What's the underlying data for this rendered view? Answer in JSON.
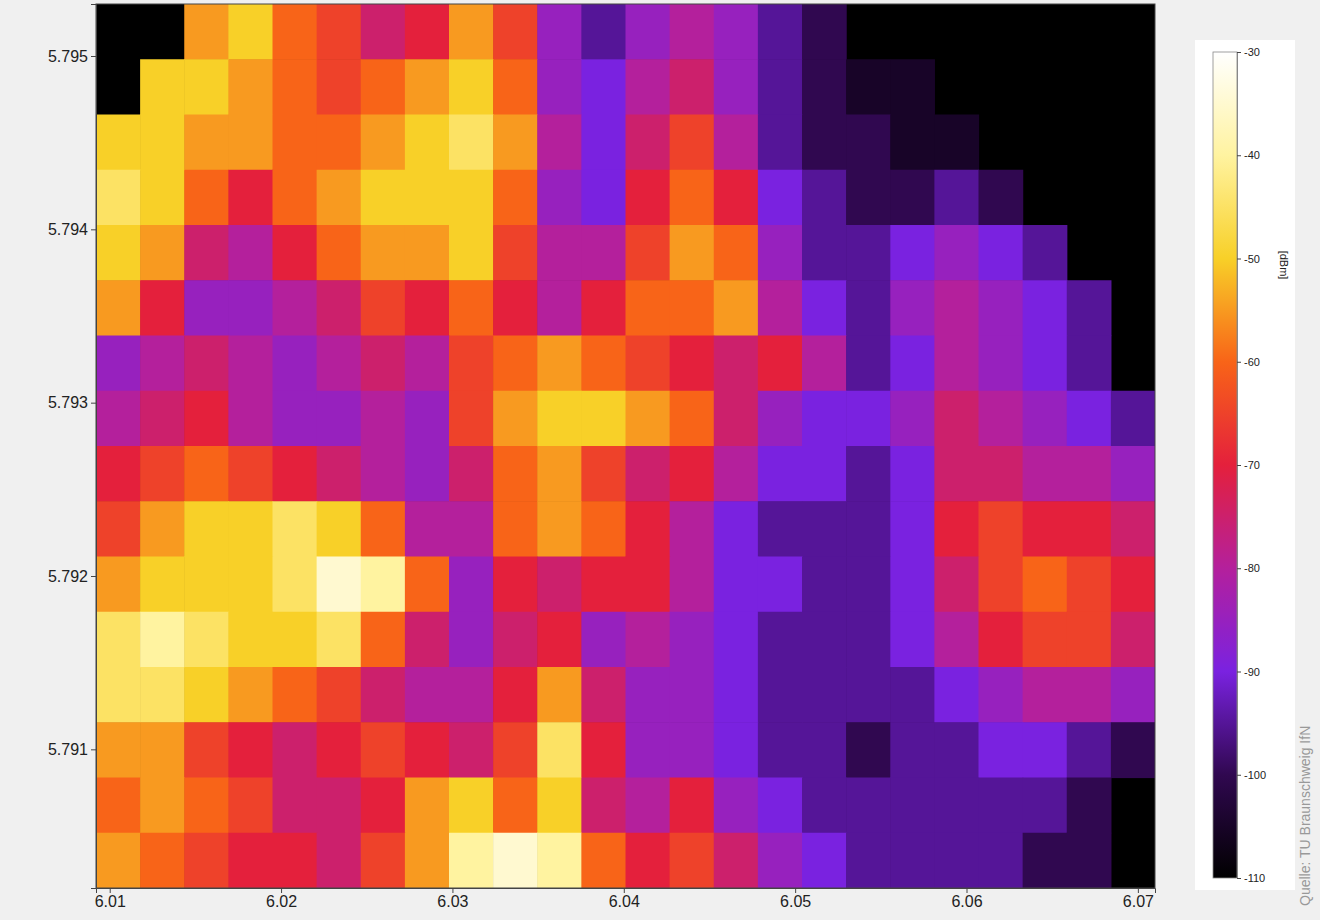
{
  "chart_data": {
    "type": "heatmap",
    "xlim": [
      6.0092,
      6.071
    ],
    "ylim": [
      5.7902,
      5.7953
    ],
    "xticks": [
      6.01,
      6.02,
      6.03,
      6.04,
      6.05,
      6.06,
      6.07
    ],
    "yticks": [
      5.791,
      5.792,
      5.793,
      5.794,
      5.795
    ],
    "cells": [
      [
        null,
        null,
        -55,
        -50,
        -60,
        -65,
        -75,
        -70,
        -55,
        -65,
        -85,
        -95,
        -85,
        -80,
        -85,
        -95,
        -100,
        null,
        null,
        null,
        null,
        null,
        null,
        null
      ],
      [
        null,
        -50,
        -50,
        -55,
        -60,
        -65,
        -60,
        -55,
        -50,
        -60,
        -85,
        -90,
        -80,
        -75,
        -85,
        -95,
        -100,
        -105,
        -105,
        null,
        null,
        null,
        null,
        null
      ],
      [
        -50,
        -50,
        -55,
        -55,
        -60,
        -60,
        -55,
        -50,
        -45,
        -55,
        -80,
        -90,
        -75,
        -65,
        -80,
        -95,
        -100,
        -100,
        -105,
        -105,
        null,
        null,
        null,
        null
      ],
      [
        -45,
        -50,
        -60,
        -70,
        -60,
        -55,
        -50,
        -50,
        -50,
        -60,
        -85,
        -90,
        -70,
        -60,
        -70,
        -90,
        -95,
        -100,
        -100,
        -95,
        -100,
        null,
        null,
        null
      ],
      [
        -50,
        -55,
        -75,
        -80,
        -70,
        -60,
        -55,
        -55,
        -50,
        -65,
        -80,
        -80,
        -65,
        -55,
        -60,
        -85,
        -95,
        -95,
        -90,
        -85,
        -90,
        -95,
        null,
        null
      ],
      [
        -55,
        -70,
        -85,
        -85,
        -80,
        -75,
        -65,
        -70,
        -60,
        -70,
        -80,
        -70,
        -60,
        -60,
        -55,
        -80,
        -90,
        -95,
        -85,
        -80,
        -85,
        -90,
        -95,
        null
      ],
      [
        -85,
        -80,
        -75,
        -80,
        -85,
        -80,
        -75,
        -80,
        -65,
        -60,
        -55,
        -60,
        -65,
        -70,
        -75,
        -70,
        -80,
        -95,
        -90,
        -80,
        -85,
        -90,
        -95,
        null
      ],
      [
        -80,
        -75,
        -70,
        -80,
        -85,
        -85,
        -80,
        -85,
        -65,
        -55,
        -50,
        -50,
        -55,
        -60,
        -75,
        -85,
        -90,
        -90,
        -85,
        -75,
        -80,
        -85,
        -90,
        -95
      ],
      [
        -70,
        -65,
        -60,
        -65,
        -70,
        -75,
        -80,
        -85,
        -75,
        -60,
        -55,
        -65,
        -75,
        -70,
        -80,
        -90,
        -90,
        -95,
        -90,
        -75,
        -75,
        -80,
        -80,
        -85
      ],
      [
        -65,
        -55,
        -50,
        -50,
        -45,
        -50,
        -60,
        -80,
        -80,
        -60,
        -55,
        -60,
        -70,
        -80,
        -90,
        -95,
        -95,
        -95,
        -90,
        -70,
        -65,
        -70,
        -70,
        -75
      ],
      [
        -55,
        -50,
        -50,
        -50,
        -45,
        -35,
        -40,
        -60,
        -85,
        -70,
        -75,
        -70,
        -70,
        -80,
        -90,
        -90,
        -95,
        -95,
        -90,
        -75,
        -65,
        -60,
        -65,
        -70
      ],
      [
        -45,
        -40,
        -45,
        -50,
        -50,
        -45,
        -60,
        -75,
        -85,
        -75,
        -70,
        -85,
        -80,
        -85,
        -90,
        -95,
        -95,
        -95,
        -90,
        -80,
        -70,
        -65,
        -65,
        -75
      ],
      [
        -45,
        -45,
        -50,
        -55,
        -60,
        -65,
        -75,
        -80,
        -80,
        -70,
        -55,
        -75,
        -85,
        -85,
        -90,
        -95,
        -95,
        -95,
        -95,
        -90,
        -85,
        -80,
        -80,
        -85
      ],
      [
        -55,
        -55,
        -65,
        -70,
        -75,
        -70,
        -65,
        -70,
        -75,
        -65,
        -45,
        -70,
        -85,
        -85,
        -90,
        -95,
        -95,
        -100,
        -95,
        -95,
        -90,
        -90,
        -95,
        -100
      ],
      [
        -60,
        -55,
        -60,
        -65,
        -75,
        -75,
        -70,
        -55,
        -50,
        -60,
        -50,
        -75,
        -80,
        -70,
        -85,
        -90,
        -95,
        -95,
        -95,
        -95,
        -95,
        -95,
        -100,
        null
      ],
      [
        -55,
        -60,
        -65,
        -70,
        -70,
        -75,
        -65,
        -55,
        -40,
        -35,
        -40,
        -60,
        -70,
        -65,
        -75,
        -85,
        -90,
        -95,
        -95,
        -95,
        -95,
        -100,
        -100,
        null
      ]
    ],
    "colorbar": {
      "range": [
        -110,
        -30
      ],
      "ticks": [
        -30,
        -40,
        -50,
        -60,
        -70,
        -80,
        -90,
        -100,
        -110
      ],
      "label": "[dBm]"
    },
    "source": "Quelle: TU Braunschweig IfN"
  }
}
